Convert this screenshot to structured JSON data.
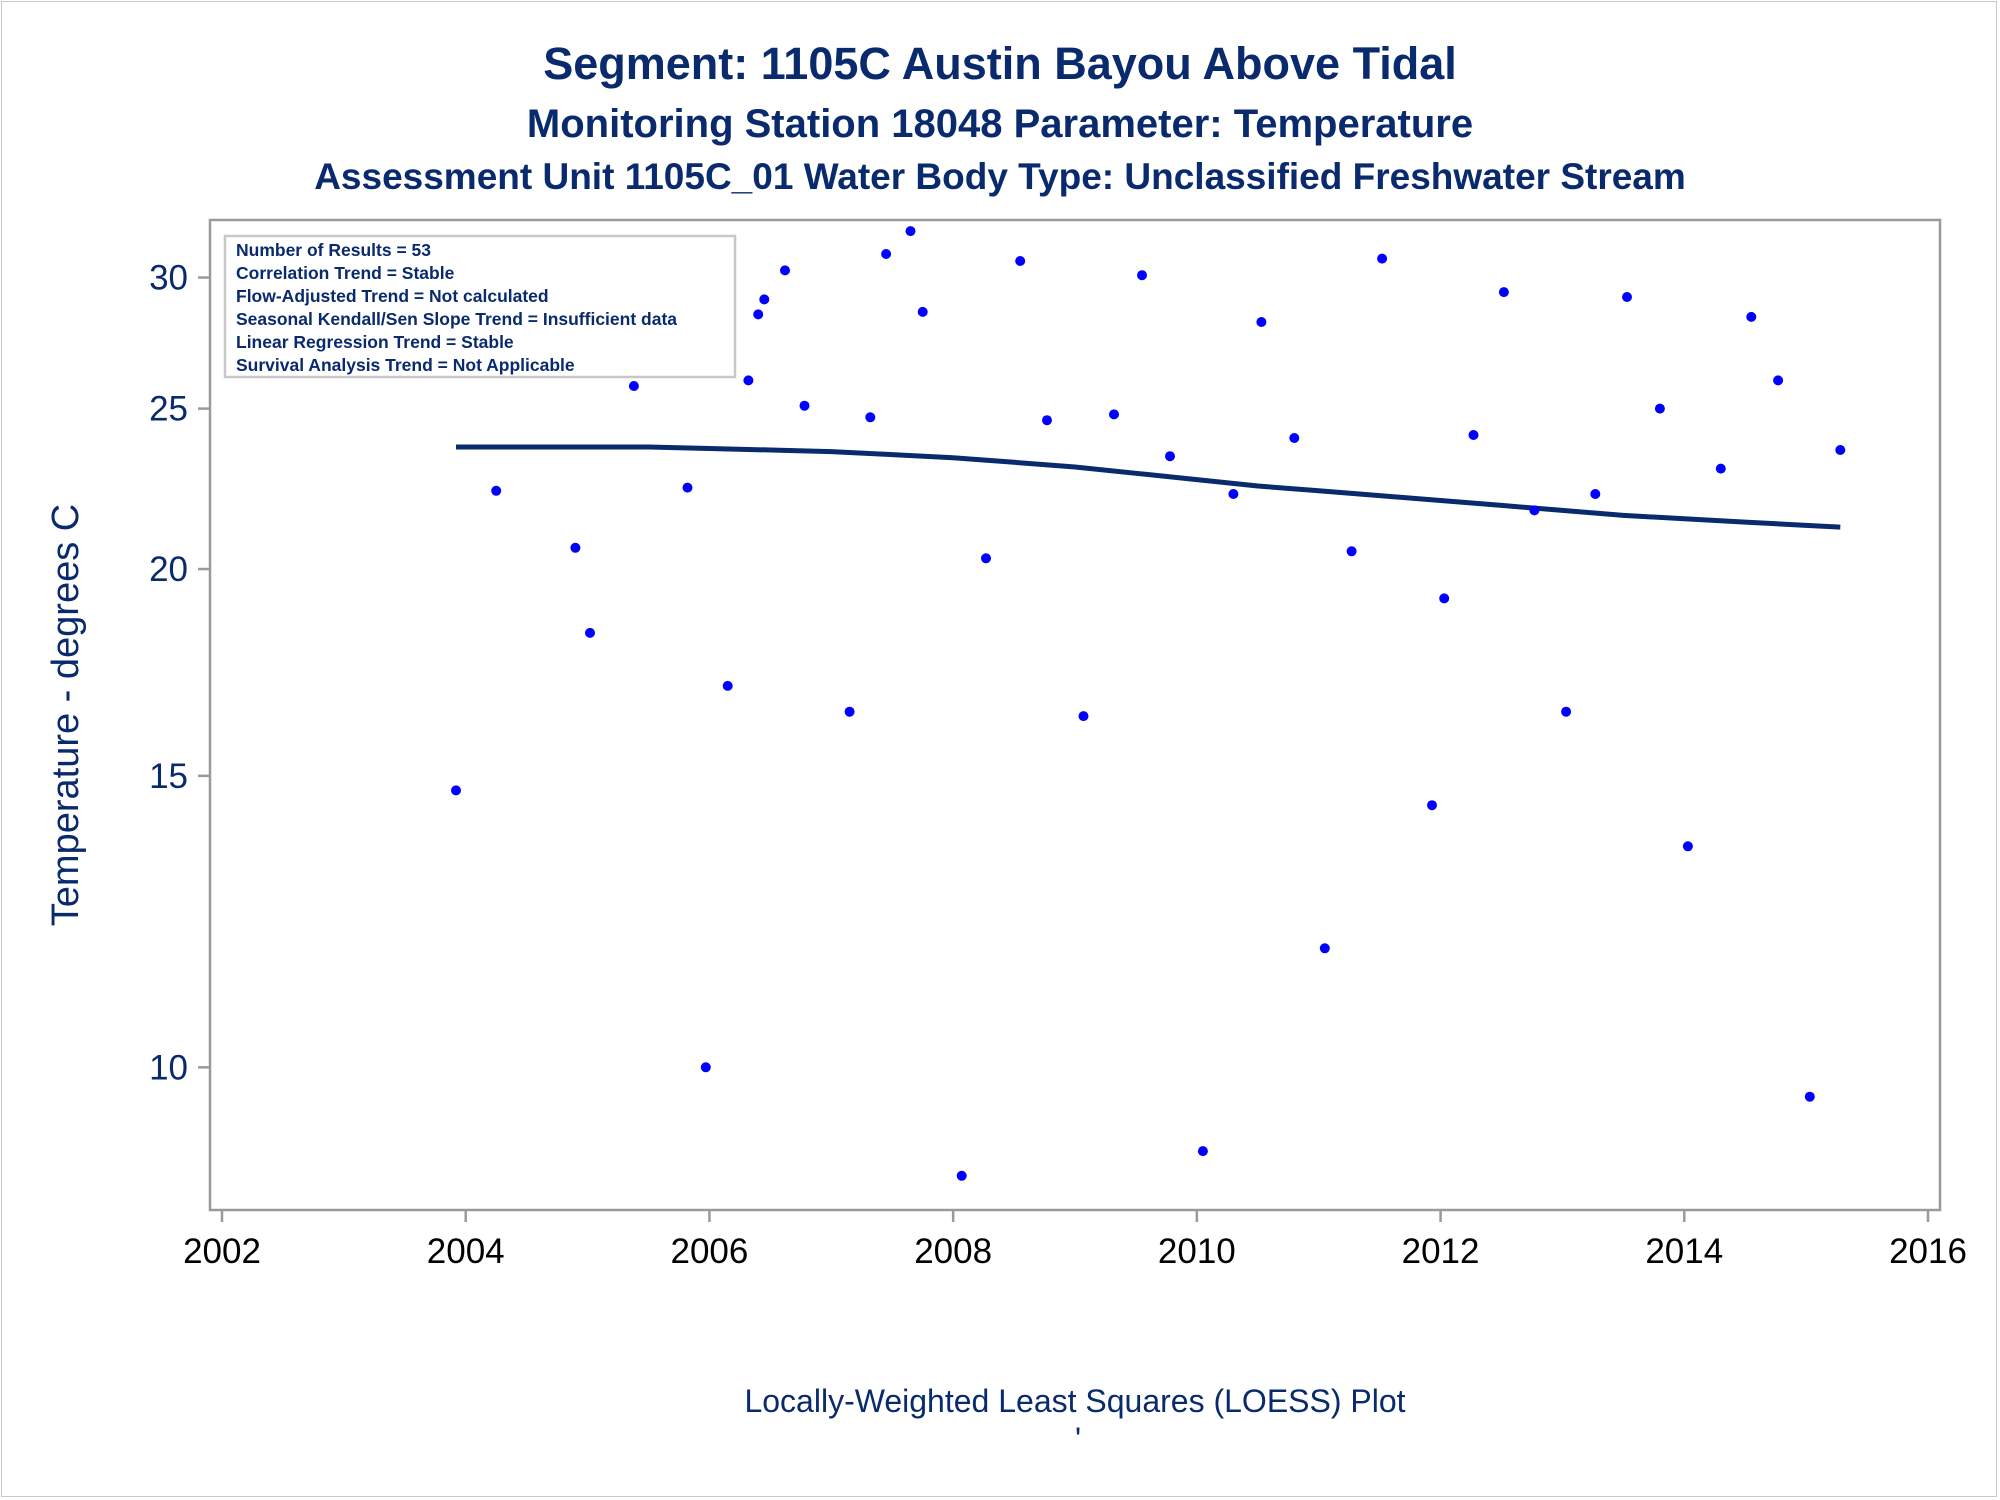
{
  "colors": {
    "text": "#0a2a6e",
    "points": "#0000ff",
    "loess_line": "#0a2a6e",
    "frame": "#9a9a9a"
  },
  "titles": {
    "line1": "Segment: 1105C  Austin Bayou Above Tidal",
    "line2": "Monitoring Station 18048 Parameter: Temperature",
    "line3": "Assessment Unit 1105C_01   Water Body Type: Unclassified Freshwater Stream"
  },
  "stats_box": [
    "Number of Results = 53",
    "Correlation Trend = Stable",
    "Flow-Adjusted Trend = Not calculated",
    "Seasonal Kendall/Sen Slope Trend = Insufficient data",
    "Linear Regression Trend = Stable",
    "Survival Analysis Trend = Not Applicable"
  ],
  "footnote": "Locally-Weighted Least Squares (LOESS) Plot",
  "footnote_mark": "'",
  "chart_data": {
    "type": "scatter",
    "xlabel": "",
    "ylabel": "Temperature - degrees C",
    "xlim": [
      2002,
      2016
    ],
    "ylim": [
      8.2,
      32.5
    ],
    "y_scale": "log",
    "grid": false,
    "x_ticks": [
      "2002",
      "2004",
      "2006",
      "2008",
      "2010",
      "2012",
      "2014",
      "2016"
    ],
    "y_ticks": [
      "10",
      "15",
      "20",
      "25",
      "30"
    ],
    "series": [
      {
        "kind": "points",
        "values": [
          [
            2003.92,
            14.7
          ],
          [
            2004.25,
            22.3
          ],
          [
            2004.9,
            20.6
          ],
          [
            2005.02,
            18.3
          ],
          [
            2005.22,
            26.7
          ],
          [
            2005.38,
            25.8
          ],
          [
            2005.55,
            26.4
          ],
          [
            2005.58,
            27.2
          ],
          [
            2005.6,
            28.1
          ],
          [
            2005.63,
            28.2
          ],
          [
            2005.82,
            22.4
          ],
          [
            2005.97,
            10.0
          ],
          [
            2006.15,
            17.0
          ],
          [
            2006.32,
            26.0
          ],
          [
            2006.4,
            28.5
          ],
          [
            2006.45,
            29.1
          ],
          [
            2006.62,
            30.3
          ],
          [
            2006.78,
            25.1
          ],
          [
            2007.15,
            16.4
          ],
          [
            2007.32,
            24.7
          ],
          [
            2007.45,
            31.0
          ],
          [
            2007.65,
            32.0
          ],
          [
            2007.75,
            28.6
          ],
          [
            2008.07,
            8.6
          ],
          [
            2008.27,
            20.3
          ],
          [
            2008.55,
            30.7
          ],
          [
            2008.77,
            24.6
          ],
          [
            2009.07,
            16.3
          ],
          [
            2009.32,
            24.8
          ],
          [
            2009.55,
            30.1
          ],
          [
            2009.78,
            23.4
          ],
          [
            2010.05,
            8.9
          ],
          [
            2010.3,
            22.2
          ],
          [
            2010.53,
            28.2
          ],
          [
            2010.8,
            24.0
          ],
          [
            2011.05,
            11.8
          ],
          [
            2011.27,
            20.5
          ],
          [
            2011.52,
            30.8
          ],
          [
            2011.93,
            14.4
          ],
          [
            2012.03,
            19.2
          ],
          [
            2012.27,
            24.1
          ],
          [
            2012.52,
            29.4
          ],
          [
            2012.77,
            21.7
          ],
          [
            2013.03,
            16.4
          ],
          [
            2013.27,
            22.2
          ],
          [
            2013.53,
            29.2
          ],
          [
            2013.8,
            25.0
          ],
          [
            2014.03,
            13.6
          ],
          [
            2014.3,
            23.0
          ],
          [
            2014.55,
            28.4
          ],
          [
            2014.77,
            26.0
          ],
          [
            2015.03,
            9.6
          ],
          [
            2015.28,
            23.6
          ]
        ]
      },
      {
        "kind": "loess",
        "values": [
          [
            2003.92,
            23.7
          ],
          [
            2004.5,
            23.7
          ],
          [
            2005.0,
            23.7
          ],
          [
            2005.5,
            23.7
          ],
          [
            2006.0,
            23.65
          ],
          [
            2006.5,
            23.6
          ],
          [
            2007.0,
            23.55
          ],
          [
            2007.5,
            23.45
          ],
          [
            2008.0,
            23.35
          ],
          [
            2008.5,
            23.2
          ],
          [
            2009.0,
            23.05
          ],
          [
            2009.5,
            22.85
          ],
          [
            2010.0,
            22.65
          ],
          [
            2010.5,
            22.45
          ],
          [
            2011.0,
            22.3
          ],
          [
            2011.5,
            22.15
          ],
          [
            2012.0,
            22.0
          ],
          [
            2012.5,
            21.85
          ],
          [
            2013.0,
            21.7
          ],
          [
            2013.5,
            21.55
          ],
          [
            2014.0,
            21.45
          ],
          [
            2014.5,
            21.35
          ],
          [
            2015.0,
            21.25
          ],
          [
            2015.28,
            21.2
          ]
        ]
      }
    ]
  }
}
